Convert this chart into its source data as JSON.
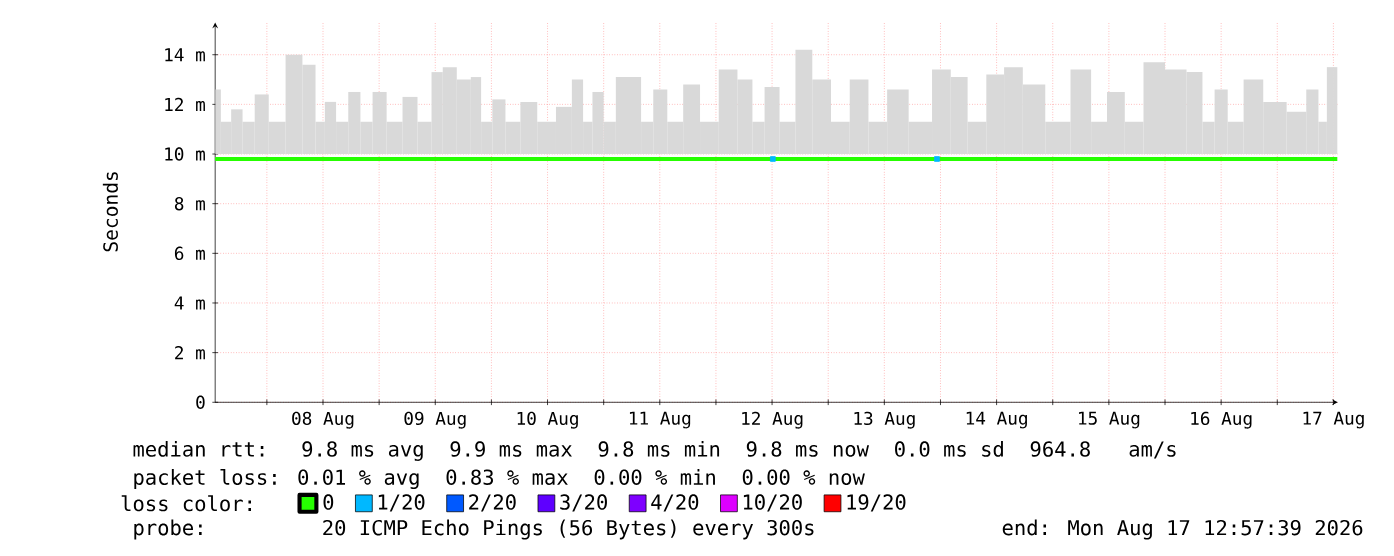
{
  "chart_data": {
    "type": "line",
    "ylabel": "Seconds",
    "xlim": [
      "2026-08-07T12:57",
      "2026-08-17T12:57"
    ],
    "xticks": [
      {
        "value": "2026-08-08T00:00",
        "label": null
      },
      {
        "value": "2026-08-08T12:00",
        "label": "08 Aug"
      },
      {
        "value": "2026-08-09T00:00",
        "label": null
      },
      {
        "value": "2026-08-09T12:00",
        "label": "09 Aug"
      },
      {
        "value": "2026-08-10T00:00",
        "label": null
      },
      {
        "value": "2026-08-10T12:00",
        "label": "10 Aug"
      },
      {
        "value": "2026-08-11T00:00",
        "label": null
      },
      {
        "value": "2026-08-11T12:00",
        "label": "11 Aug"
      },
      {
        "value": "2026-08-12T00:00",
        "label": null
      },
      {
        "value": "2026-08-12T12:00",
        "label": "12 Aug"
      },
      {
        "value": "2026-08-13T00:00",
        "label": null
      },
      {
        "value": "2026-08-13T12:00",
        "label": "13 Aug"
      },
      {
        "value": "2026-08-14T00:00",
        "label": null
      },
      {
        "value": "2026-08-14T12:00",
        "label": "14 Aug"
      },
      {
        "value": "2026-08-15T00:00",
        "label": null
      },
      {
        "value": "2026-08-15T12:00",
        "label": "15 Aug"
      },
      {
        "value": "2026-08-16T00:00",
        "label": null
      },
      {
        "value": "2026-08-16T12:00",
        "label": "16 Aug"
      },
      {
        "value": "2026-08-17T00:00",
        "label": null
      },
      {
        "value": "2026-08-17T12:00",
        "label": "17 Aug"
      }
    ],
    "ylim": [
      0,
      15.3
    ],
    "yticks": [
      0,
      {
        "value": 2,
        "label": "2 m"
      },
      {
        "value": 4,
        "label": "4 m"
      },
      {
        "value": 6,
        "label": "6 m"
      },
      {
        "value": 8,
        "label": "8 m"
      },
      {
        "value": 10,
        "label": "10 m"
      },
      {
        "value": 12,
        "label": "12 m"
      },
      {
        "value": 14,
        "label": "14 m"
      }
    ],
    "grid": true,
    "legend": "bottom",
    "legend_title": "loss color:",
    "series": [
      {
        "type": "bar",
        "color": "#d9d9d9",
        "x": [
          "2026-08-07T13:00",
          "2026-08-07T15:20",
          "2026-08-07T17:24",
          "2026-08-07T20:12",
          "2026-08-07T22:36",
          "2026-08-08T02:12",
          "2026-08-08T05:48",
          "2026-08-08T09:24",
          "2026-08-08T11:24",
          "2026-08-08T13:24",
          "2026-08-08T16:12",
          "2026-08-08T18:36",
          "2026-08-08T21:24",
          "2026-08-08T23:48",
          "2026-08-09T03:24",
          "2026-08-09T06:36",
          "2026-08-09T09:48",
          "2026-08-09T12:36",
          "2026-08-09T14:36",
          "2026-08-09T18:36",
          "2026-08-09T20:36",
          "2026-08-09T23:00",
          "2026-08-10T01:24",
          "2026-08-10T04:36",
          "2026-08-10T07:48",
          "2026-08-10T11:48",
          "2026-08-10T15:48",
          "2026-08-10T18:36",
          "2026-08-10T20:36",
          "2026-08-10T22:36",
          "2026-08-11T01:24",
          "2026-08-11T03:48",
          "2026-08-11T06:36",
          "2026-08-11T09:24",
          "2026-08-11T11:48",
          "2026-08-11T15:24",
          "2026-08-11T18:36",
          "2026-08-11T22:36",
          "2026-08-12T02:36",
          "2026-08-12T06:36",
          "2026-08-12T09:00",
          "2026-08-12T11:48",
          "2026-08-12T15:24",
          "2026-08-12T18:36",
          "2026-08-12T22:36",
          "2026-08-13T02:36",
          "2026-08-13T06:36",
          "2026-08-13T10:36",
          "2026-08-13T14:36",
          "2026-08-13T19:48",
          "2026-08-14T00:36",
          "2026-08-14T03:48",
          "2026-08-14T07:48",
          "2026-08-14T11:48",
          "2026-08-14T15:24",
          "2026-08-14T19:48",
          "2026-08-15T01:00",
          "2026-08-15T06:36",
          "2026-08-15T09:48",
          "2026-08-15T13:24",
          "2026-08-15T17:24",
          "2026-08-15T21:24",
          "2026-08-16T02:36",
          "2026-08-16T06:36",
          "2026-08-16T09:24",
          "2026-08-16T11:48",
          "2026-08-16T15:00",
          "2026-08-16T18:36",
          "2026-08-16T23:24",
          "2026-08-17T04:36",
          "2026-08-17T07:48",
          "2026-08-17T09:48",
          "2026-08-17T11:24",
          "2026-08-17T12:50"
        ],
        "values": [
          2.6,
          1.3,
          1.8,
          1.3,
          2.4,
          1.3,
          4.0,
          3.6,
          1.3,
          2.1,
          1.3,
          2.5,
          1.3,
          2.5,
          1.3,
          2.3,
          1.3,
          3.3,
          3.5,
          3.0,
          3.1,
          1.3,
          2.2,
          1.3,
          2.1,
          1.3,
          1.9,
          3.0,
          1.3,
          2.5,
          1.3,
          3.1,
          3.1,
          1.3,
          2.6,
          1.3,
          2.8,
          1.3,
          3.4,
          3.0,
          1.3,
          2.7,
          1.3,
          4.2,
          3.0,
          1.3,
          3.0,
          1.3,
          2.6,
          1.3,
          3.4,
          3.1,
          1.3,
          3.2,
          3.5,
          2.8,
          1.3,
          3.4,
          1.3,
          2.5,
          1.3,
          3.7,
          3.4,
          3.3,
          1.3,
          2.6,
          1.3,
          3.0,
          2.1,
          1.7,
          2.6,
          1.3,
          3.5,
          3.5
        ],
        "base": [
          10.0,
          10.0,
          10.0,
          10.0,
          10.0,
          10.0,
          10.0,
          10.0,
          10.0,
          10.0,
          10.0,
          10.0,
          10.0,
          10.0,
          10.0,
          10.0,
          10.0,
          10.0,
          10.0,
          10.0,
          10.0,
          10.0,
          10.0,
          10.0,
          10.0,
          10.0,
          10.0,
          10.0,
          10.0,
          10.0,
          10.0,
          10.0,
          10.0,
          10.0,
          10.0,
          10.0,
          10.0,
          10.0,
          10.0,
          10.0,
          10.0,
          10.0,
          10.0,
          10.0,
          10.0,
          10.0,
          10.0,
          10.0,
          10.0,
          10.0,
          10.0,
          10.0,
          10.0,
          10.0,
          10.0,
          10.0,
          10.0,
          10.0,
          10.0,
          10.0,
          10.0,
          10.0,
          10.0,
          10.0,
          10.0,
          10.0,
          10.0,
          10.0,
          10.0,
          10.0,
          10.0,
          10.0,
          10.0,
          10.0
        ]
      },
      {
        "name": "0",
        "color": "#26ff00",
        "x": [
          "2026-08-07T12:57",
          "2026-08-17T12:50"
        ],
        "values": [
          9.8,
          9.8
        ]
      },
      {
        "type": "scatter",
        "name": "1/20",
        "color": "#00b8ff",
        "marker": "square",
        "x": [
          "2026-08-12T12:10",
          "2026-08-13T23:15"
        ],
        "values": [
          9.8,
          9.8
        ]
      },
      {
        "name": "2/20",
        "color": "#0059ff"
      },
      {
        "name": "3/20",
        "color": "#5e00ff"
      },
      {
        "name": "4/20",
        "color": "#7e00ff"
      },
      {
        "name": "10/20",
        "color": "#dd00ff"
      },
      {
        "name": "19/20",
        "color": "#ff0000"
      }
    ],
    "annotations": [
      "median rtt:  9.8 ms avg  9.9 ms max  9.8 ms min  9.8 ms now  0.0 ms sd  964.8   am/s",
      "packet loss: 0.01 % avg  0.83 % max  0.00 % min  0.00 % now",
      "probe:       20 ICMP Echo Pings (56 Bytes) every 300s",
      "end: Mon Aug 17 12:57:39 2026"
    ]
  }
}
